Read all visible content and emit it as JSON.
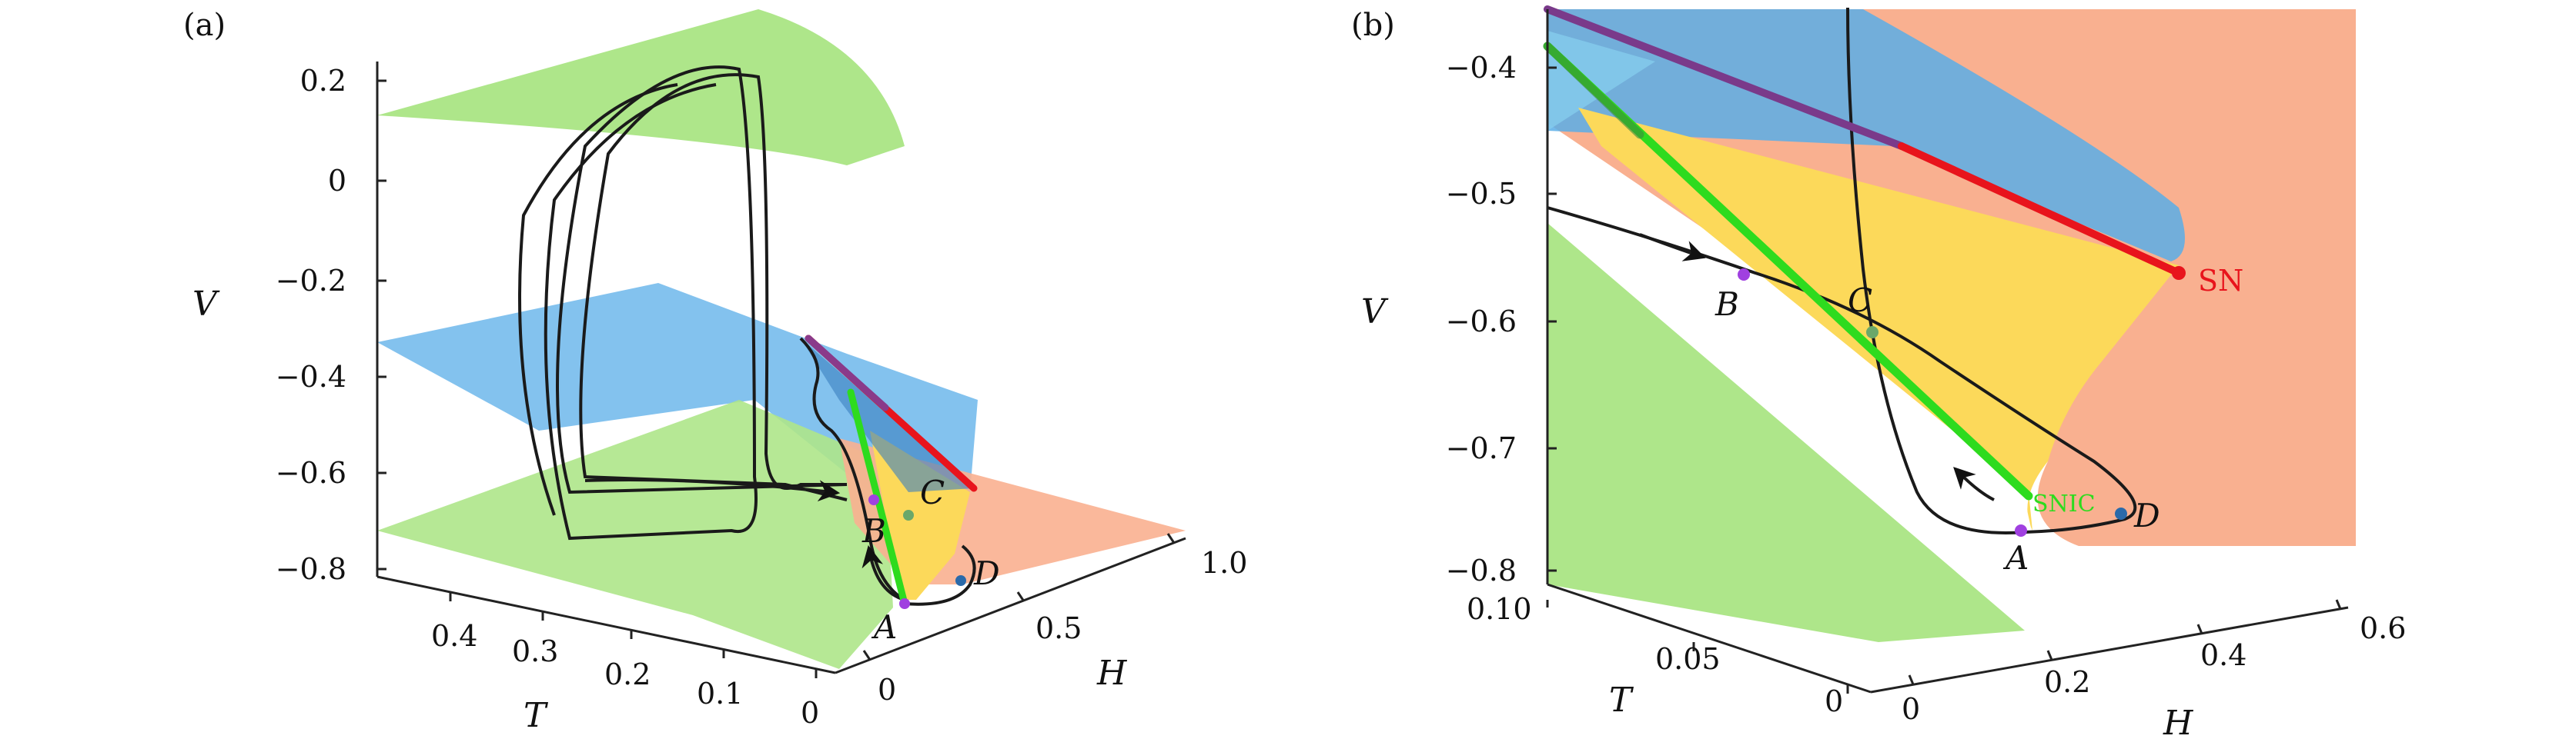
{
  "panels": [
    {
      "label": "(a)",
      "axes": {
        "v_label": "V",
        "t_label": "T",
        "h_label": "H",
        "v_ticks": [
          "0.2",
          "0",
          "−0.2",
          "−0.4",
          "−0.6",
          "−0.8"
        ],
        "t_ticks": [
          "0.4",
          "0.3",
          "0.2",
          "0.1",
          "0"
        ],
        "h_ticks": [
          "0",
          "0.5",
          "1.0"
        ]
      },
      "points": [
        "A",
        "B",
        "C",
        "D"
      ]
    },
    {
      "label": "(b)",
      "axes": {
        "v_label": "V",
        "t_label": "T",
        "h_label": "H",
        "v_ticks": [
          "−0.4",
          "−0.5",
          "−0.6",
          "−0.7",
          "−0.8"
        ],
        "t_ticks": [
          "0.10",
          "0.05",
          "0"
        ],
        "h_ticks": [
          "0",
          "0.2",
          "0.4",
          "0.6"
        ]
      },
      "points": [
        "A",
        "B",
        "C",
        "D"
      ],
      "curve_labels": {
        "sn": "SN",
        "snic": "SNIC"
      }
    }
  ],
  "colors": {
    "green_surface": "#aee68a",
    "blue_surface": "#5aaee8",
    "orange_surface": "#f9b090",
    "yellow_region": "#fcd95a",
    "sn_curve": "#e8141c",
    "snic_curve": "#2edb1e",
    "point_purple": "#a040e0",
    "point_green": "#6aa86a",
    "point_blue": "#2a6aaa"
  }
}
